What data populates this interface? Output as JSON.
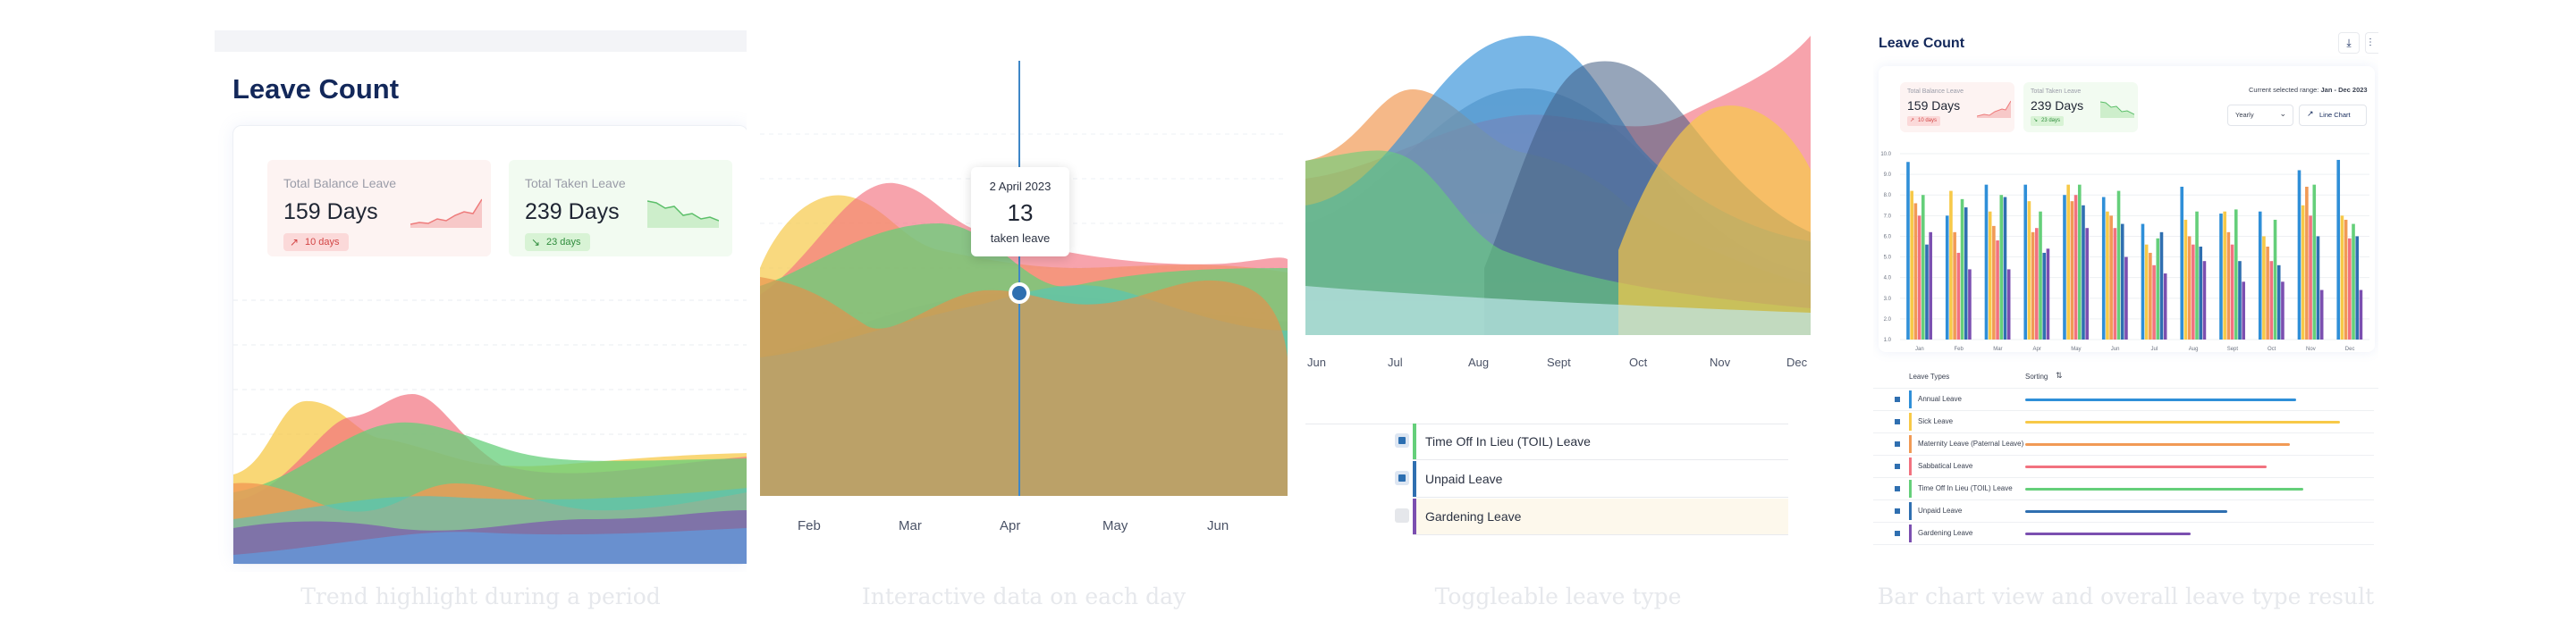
{
  "colors": {
    "navy": "#13285a",
    "yellow": "#f7c948",
    "red": "#f2727f",
    "green": "#65cf7a",
    "orange": "#f19a55",
    "blue": "#2f8fd8",
    "teal": "#4fc7c0",
    "purple": "#7b4fb0",
    "gray": "#b8bfc8"
  },
  "panel1": {
    "title": "Leave Count",
    "balance": {
      "label": "Total Balance Leave",
      "value": "159 Days",
      "badge": "10 days"
    },
    "taken": {
      "label": "Total Taken Leave",
      "value": "239 Days",
      "badge": "23 days"
    },
    "caption": "Trend highlight during a period"
  },
  "panel2": {
    "tooltip": {
      "date": "2 April 2023",
      "value": "13",
      "unit": "taken leave"
    },
    "x_labels": [
      "Feb",
      "Mar",
      "Apr",
      "May",
      "Jun"
    ],
    "caption": "Interactive data on each day"
  },
  "panel3": {
    "x_labels": [
      "Jun",
      "Jul",
      "Aug",
      "Sept",
      "Oct",
      "Nov",
      "Dec"
    ],
    "legend": [
      {
        "label": "Time Off In Lieu (TOIL) Leave",
        "checked": true,
        "color": "#65cf7a"
      },
      {
        "label": "Unpaid Leave",
        "checked": true,
        "color": "#2f6fb0"
      },
      {
        "label": "Gardening Leave",
        "checked": false,
        "color": "#7b4fb0"
      }
    ],
    "caption": "Toggleable leave type"
  },
  "panel4": {
    "title": "Leave Count",
    "balance": {
      "label": "Total Balance Leave",
      "value": "159 Days",
      "badge": "10 days"
    },
    "taken": {
      "label": "Total Taken Leave",
      "value": "239 Days",
      "badge": "23 days"
    },
    "range_label": "Current selected range:",
    "range_value": "Jan - Dec 2023",
    "period_select": "Yearly",
    "view_button": "Line Chart",
    "leave_types_header": "Leave Types",
    "sorting_header": "Sorting",
    "caption": "Bar chart view and overall leave type result"
  },
  "chart_data": {
    "type": "bar",
    "categories": [
      "Jan",
      "Feb",
      "Mar",
      "Apr",
      "May",
      "Jun",
      "Jul",
      "Aug",
      "Sept",
      "Oct",
      "Nov",
      "Dec"
    ],
    "yticks": [
      "1.0",
      "2.0",
      "3.0",
      "4.0",
      "5.0",
      "6.0",
      "7.0",
      "8.0",
      "9.0",
      "10.0"
    ],
    "ylim": [
      1,
      10
    ],
    "series": [
      {
        "values": [
          9.6,
          7.0,
          8.5,
          8.5,
          8.0,
          7.9,
          6.6,
          8.4,
          7.1,
          7.2,
          9.2,
          9.7
        ]
      },
      {
        "values": [
          8.2,
          8.2,
          7.2,
          7.7,
          8.5,
          7.2,
          5.6,
          6.8,
          7.2,
          6.0,
          7.5,
          7.0
        ]
      },
      {
        "values": [
          7.6,
          6.2,
          6.5,
          6.2,
          7.7,
          7.0,
          5.2,
          6.0,
          6.2,
          5.5,
          8.4,
          6.8
        ]
      },
      {
        "values": [
          7.0,
          5.2,
          5.8,
          6.4,
          8.0,
          6.4,
          4.6,
          5.6,
          5.6,
          4.8,
          7.0,
          5.9
        ]
      },
      {
        "values": [
          8.0,
          7.8,
          8.0,
          7.2,
          8.5,
          8.2,
          5.9,
          7.2,
          7.3,
          6.8,
          8.5,
          6.6
        ]
      },
      {
        "values": [
          5.6,
          7.4,
          7.9,
          5.2,
          7.5,
          6.6,
          6.2,
          5.5,
          4.8,
          4.6,
          6.0,
          6.0
        ]
      },
      {
        "values": [
          6.2,
          4.4,
          4.4,
          5.4,
          6.4,
          5.0,
          4.2,
          4.8,
          3.8,
          3.8,
          3.4,
          3.4
        ]
      }
    ]
  },
  "leave_type_results": [
    {
      "label": "Annual Leave",
      "value": 0.82,
      "color": "#2f8fd8"
    },
    {
      "label": "Sick Leave",
      "value": 0.95,
      "color": "#f7c948"
    },
    {
      "label": "Maternity Leave (Paternal Leave)",
      "value": 0.8,
      "color": "#f19a55"
    },
    {
      "label": "Sabbatical Leave",
      "value": 0.73,
      "color": "#f2727f"
    },
    {
      "label": "Time Off In Lieu (TOIL) Leave",
      "value": 0.84,
      "color": "#65cf7a"
    },
    {
      "label": "Unpaid Leave",
      "value": 0.61,
      "color": "#2f6fb0"
    },
    {
      "label": "Gardening Leave",
      "value": 0.5,
      "color": "#7b4fb0"
    }
  ]
}
